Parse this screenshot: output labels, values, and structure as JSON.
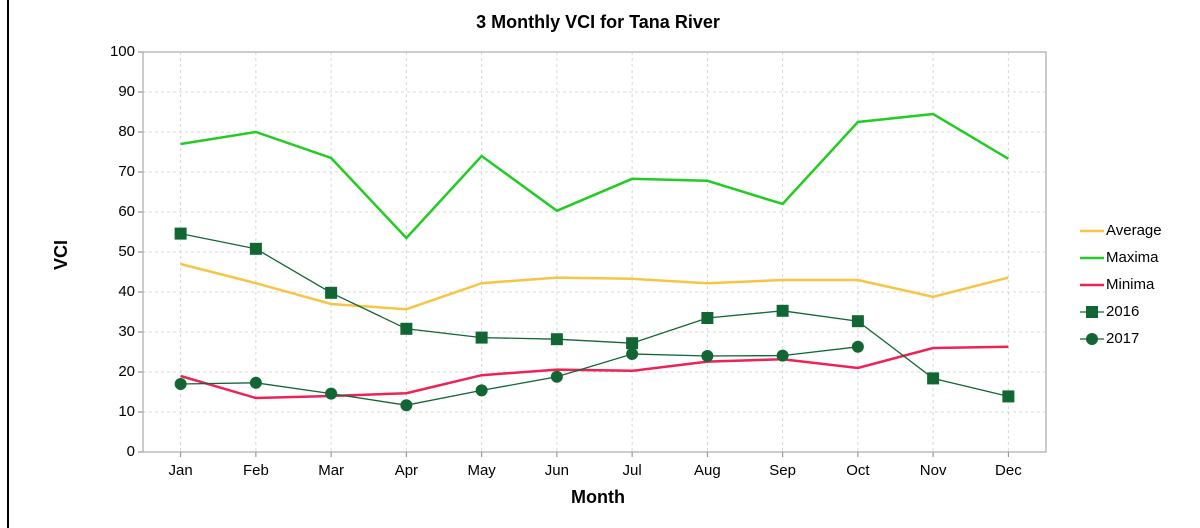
{
  "chart_data": {
    "type": "line",
    "title": "3 Monthly VCI for Tana River",
    "x_label": "Month",
    "y_label": "VCI",
    "categories": [
      "Jan",
      "Feb",
      "Mar",
      "Apr",
      "May",
      "Jun",
      "Jul",
      "Aug",
      "Sep",
      "Oct",
      "Nov",
      "Dec"
    ],
    "series": [
      {
        "name": "Average",
        "color": "#f7c545",
        "marker": "none",
        "values": [
          47,
          42.2,
          37,
          35.7,
          42.2,
          43.6,
          43.3,
          42.2,
          43,
          43,
          38.8,
          43.6
        ]
      },
      {
        "name": "Maxima",
        "color": "#22cc22",
        "marker": "none",
        "values": [
          77,
          80,
          73.5,
          53.5,
          74,
          60.3,
          68.3,
          67.8,
          62,
          82.5,
          84.5,
          73.3
        ]
      },
      {
        "name": "Minima",
        "color": "#ee2255",
        "marker": "none",
        "values": [
          19,
          13.5,
          14,
          14.7,
          19.2,
          20.6,
          20.3,
          22.6,
          23.2,
          21,
          26,
          26.3
        ]
      },
      {
        "name": "2016",
        "color": "#116633",
        "marker": "square",
        "values": [
          54.6,
          50.8,
          39.8,
          30.8,
          28.6,
          28.2,
          27.2,
          33.5,
          35.3,
          32.7,
          18.4,
          13.9
        ]
      },
      {
        "name": "2017",
        "color": "#116633",
        "marker": "circle",
        "values": [
          17,
          17.3,
          14.6,
          11.7,
          15.4,
          18.8,
          24.5,
          24,
          24.1,
          26.3,
          null,
          null
        ]
      }
    ],
    "ylim": [
      0,
      100
    ],
    "yticks": [
      0,
      10,
      20,
      30,
      40,
      50,
      60,
      70,
      80,
      90,
      100
    ],
    "grid": true,
    "legend": "right"
  }
}
